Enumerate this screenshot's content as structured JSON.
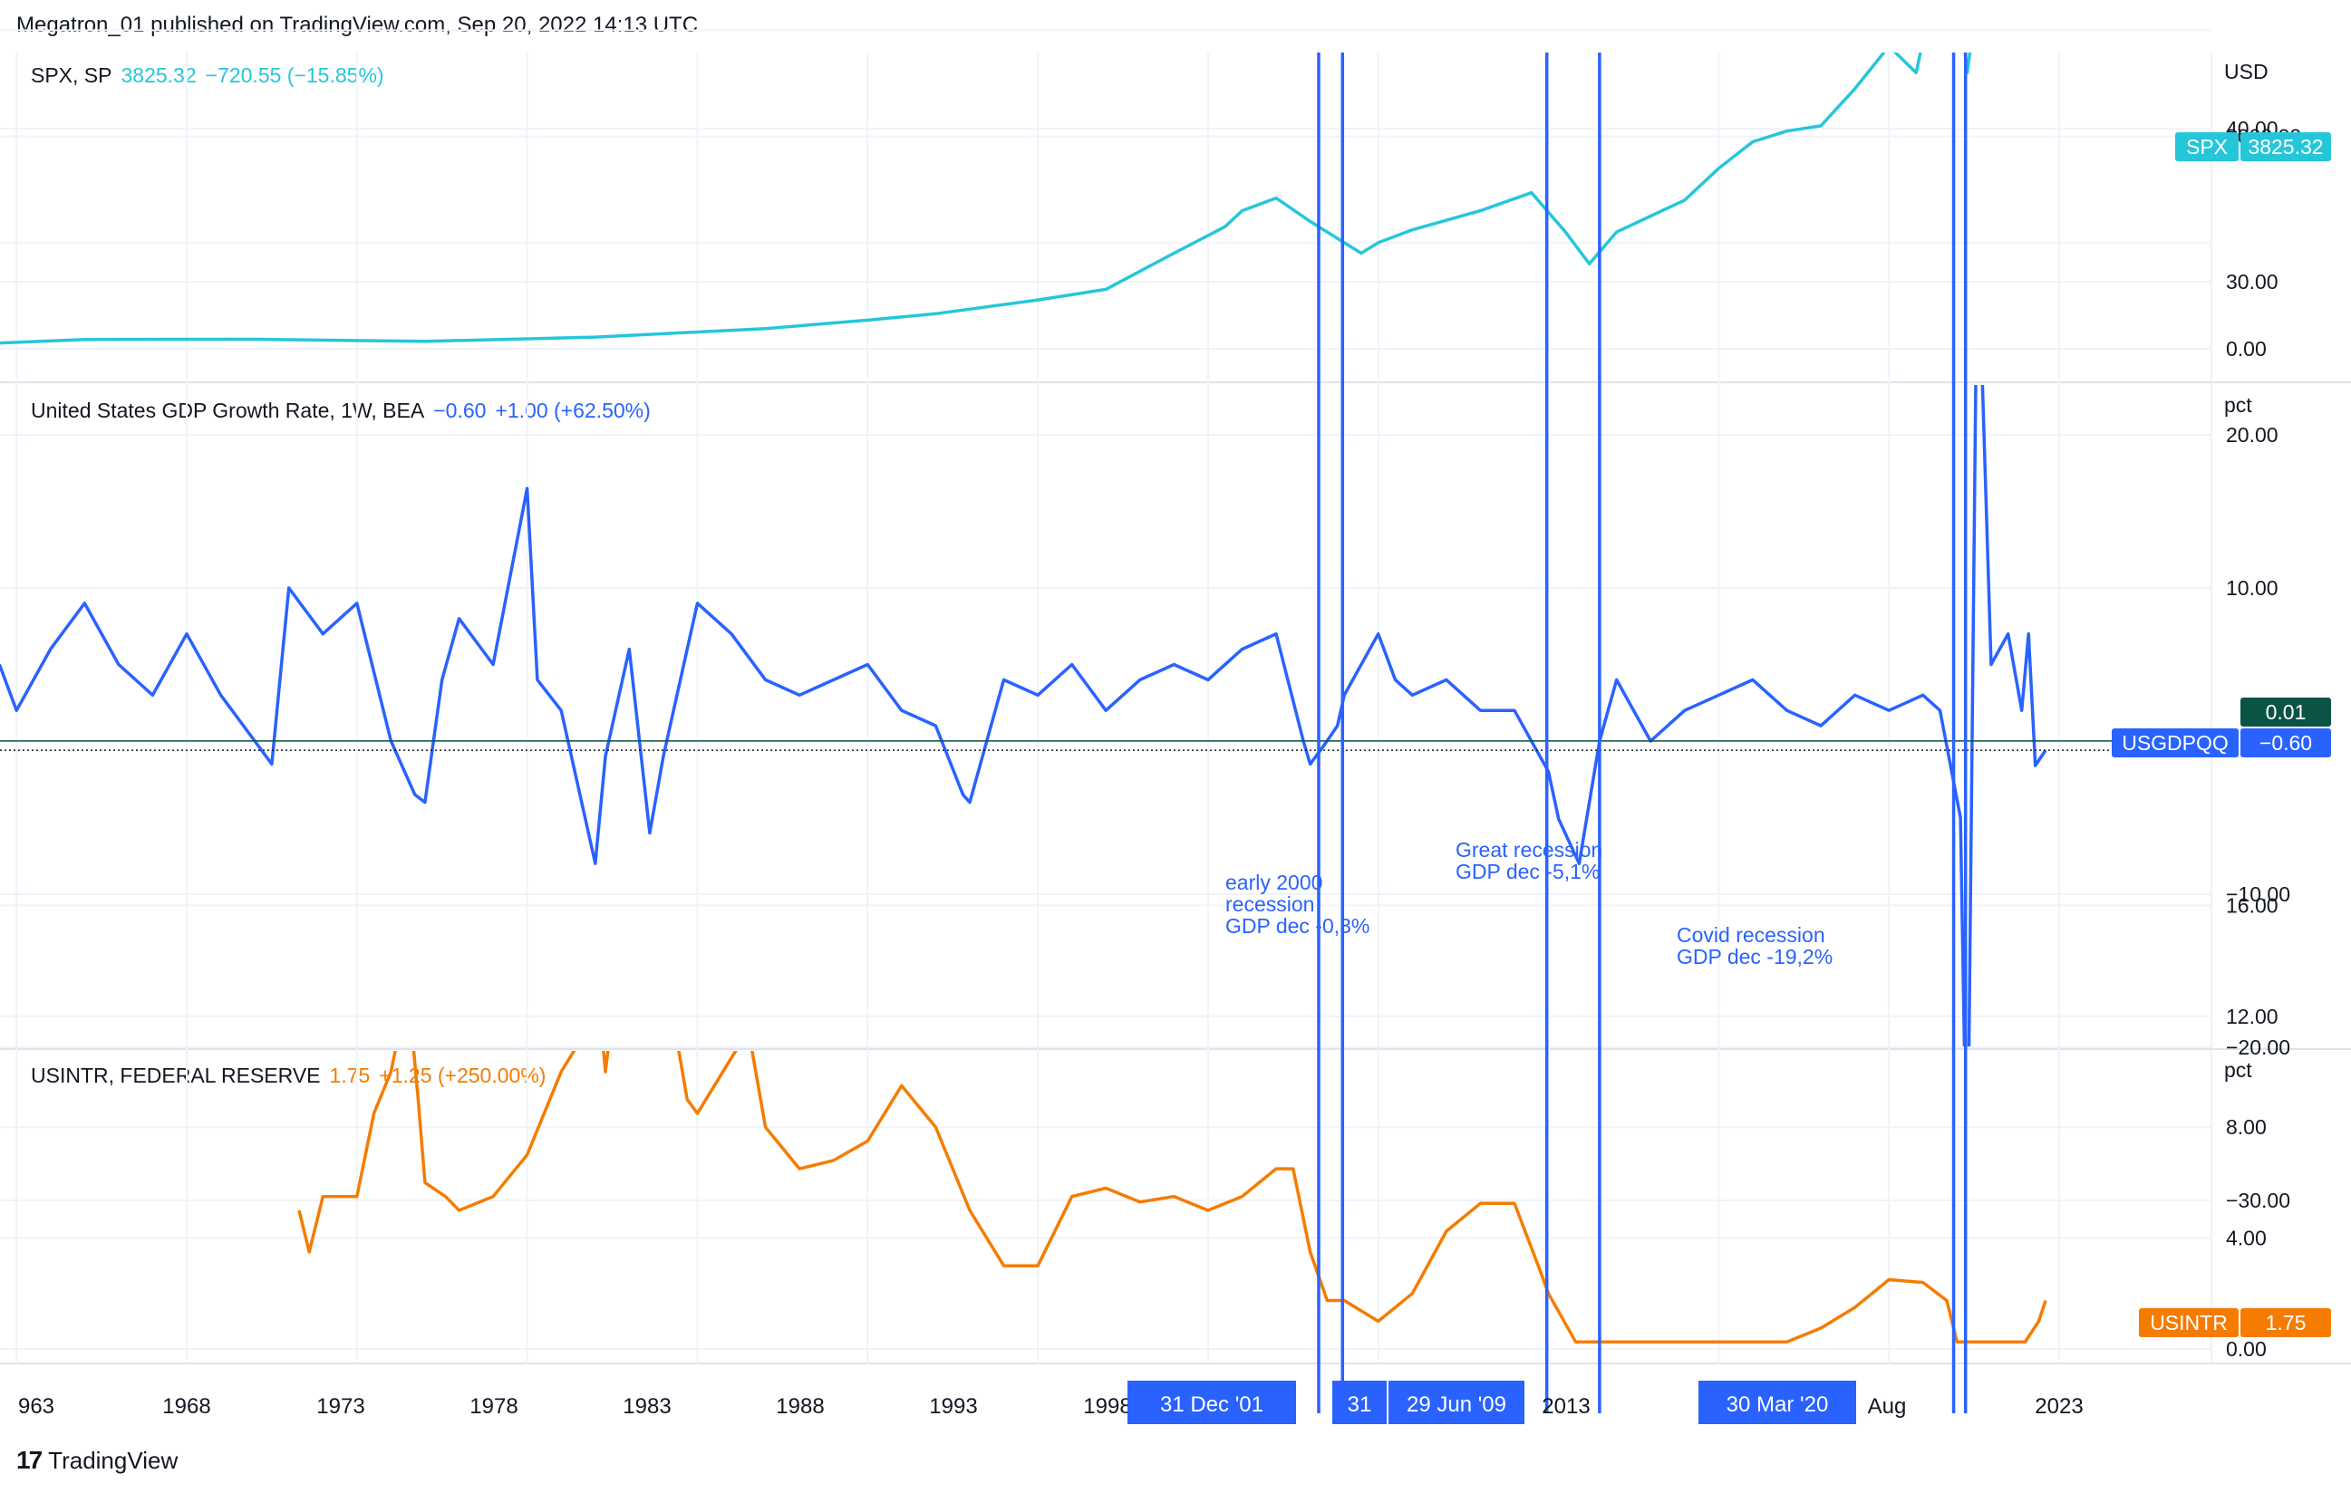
{
  "header": {
    "publish_line": "Megatron_01 published on TradingView.com, Sep 20, 2022 14:13 UTC"
  },
  "brand": {
    "name": "TradingView",
    "logo_text": "17"
  },
  "colors": {
    "spx": "#26c6da",
    "gdp": "#2962ff",
    "rate": "#f57c00",
    "marker": "#2962ff",
    "grid": "#f0f3fa",
    "pane_border": "#e0e3eb",
    "label_dark": "#0b5345"
  },
  "panes": {
    "spx": {
      "legend": {
        "name": "SPX, SP",
        "value": "3825.32",
        "change": "−720.55 (−15.85%)"
      },
      "unit": "USD",
      "ticks": [
        "2000.00",
        "0.00"
      ],
      "price_label": {
        "tag": "SPX",
        "value": "3825.32"
      }
    },
    "gdp": {
      "legend": {
        "name": "United States GDP Growth Rate, 1W, BEA",
        "value": "−0.60",
        "change": "+1.00 (+62.50%)"
      },
      "unit": "pct",
      "ticks": [
        "40.00",
        "30.00",
        "20.00",
        "10.00",
        "−10.00",
        "−20.00",
        "−30.00"
      ],
      "price_label": {
        "tag": "USGDPQQ",
        "value": "−0.60"
      },
      "extra_label": "0.01"
    },
    "rate": {
      "legend": {
        "name": "USINTR, FEDERAL RESERVE",
        "value": "1.75",
        "change": "+1.25 (+250.00%)"
      },
      "unit": "pct",
      "ticks": [
        "16.00",
        "12.00",
        "8.00",
        "4.00",
        "0.00"
      ],
      "price_label": {
        "tag": "USINTR",
        "value": "1.75"
      }
    }
  },
  "annotations": [
    {
      "lines": [
        "early 2000",
        "recession",
        "GDP dec -0,3%"
      ]
    },
    {
      "lines": [
        "Great recession",
        "GDP dec -5,1%"
      ]
    },
    {
      "lines": [
        "Covid recession",
        "GDP dec -19,2%"
      ]
    }
  ],
  "x_axis": {
    "labels": [
      "963",
      "1968",
      "1973",
      "1978",
      "1983",
      "1988",
      "1993",
      "1998",
      "2013",
      "Aug",
      "2023"
    ],
    "date_markers": [
      "31 Dec '01",
      "31",
      "29 Jun '09",
      "30 Mar '20"
    ]
  },
  "chart_data": [
    {
      "type": "line",
      "title": "SPX, SP",
      "ylabel": "USD",
      "ylim": [
        -100,
        5000
      ],
      "series": [
        {
          "name": "SPX",
          "x": [
            1962.5,
            1965,
            1970,
            1975,
            1980,
            1985,
            1988,
            1990,
            1993,
            1995,
            1997,
            1998.5,
            1999,
            2000,
            2001,
            2002.5,
            2003,
            2004,
            2006,
            2007.5,
            2008.5,
            2009.2,
            2010,
            2011,
            2012,
            2013,
            2014,
            2015,
            2016,
            2017,
            2018,
            2018.8,
            2019,
            2019.5,
            2020.1,
            2020.3,
            2020.5,
            2021,
            2021.5,
            2021.9,
            2022.2,
            2022.5,
            2022.7
          ],
          "values": [
            55,
            88,
            90,
            70,
            110,
            190,
            270,
            330,
            460,
            560,
            900,
            1150,
            1300,
            1420,
            1200,
            900,
            1000,
            1120,
            1300,
            1470,
            1100,
            800,
            1100,
            1250,
            1400,
            1700,
            1950,
            2050,
            2100,
            2450,
            2850,
            2600,
            2900,
            3000,
            3200,
            2600,
            3100,
            3750,
            4300,
            4700,
            4500,
            3900,
            3825.32
          ]
        }
      ],
      "last": 3825.32
    },
    {
      "type": "line",
      "title": "United States GDP Growth Rate, 1W, BEA",
      "ylabel": "pct",
      "ylim": [
        -40,
        40
      ],
      "series": [
        {
          "name": "USGDPQQ",
          "x": [
            1962.5,
            1963,
            1964,
            1965,
            1966,
            1967,
            1968,
            1969,
            1970,
            1970.5,
            1971,
            1972,
            1973,
            1974,
            1974.7,
            1975,
            1975.5,
            1976,
            1977,
            1978,
            1978.3,
            1979,
            1980,
            1980.3,
            1981,
            1981.6,
            1982,
            1983,
            1984,
            1985,
            1986,
            1987,
            1988,
            1989,
            1990,
            1990.8,
            1991,
            1992,
            1993,
            1994,
            1995,
            1996,
            1997,
            1998,
            1999,
            2000,
            2000.8,
            2001,
            2001.4,
            2001.8,
            2002,
            2003,
            2003.5,
            2004,
            2005,
            2006,
            2007,
            2008,
            2008.3,
            2008.9,
            2009.5,
            2010,
            2011,
            2012,
            2013,
            2014,
            2015,
            2016,
            2017,
            2018,
            2019,
            2019.5,
            2020.1,
            2020.3,
            2020.6,
            2021,
            2021.5,
            2021.9,
            2022.1,
            2022.3,
            2022.6
          ],
          "values": [
            5,
            2,
            6,
            9,
            5,
            3,
            7,
            3,
            0,
            -1.5,
            10,
            7,
            9,
            0,
            -3.5,
            -4,
            4,
            8,
            5,
            16.5,
            4,
            2,
            -8,
            -1,
            6,
            -6,
            -1,
            9,
            7,
            4,
            3,
            4,
            5,
            2,
            1,
            -3.5,
            -4,
            4,
            3,
            5,
            2,
            4,
            5,
            4,
            6,
            7,
            0,
            -1.5,
            -0.3,
            1,
            3,
            7,
            4,
            3,
            4,
            2,
            2,
            -2,
            -5.1,
            -8,
            0,
            4,
            0,
            2,
            3,
            4,
            2,
            1,
            3,
            2,
            3,
            2,
            -5,
            -31,
            34,
            5,
            7,
            2,
            7,
            -1.6,
            -0.6
          ]
        }
      ],
      "last": -0.6
    },
    {
      "type": "line",
      "title": "USINTR, FEDERAL RESERVE",
      "ylabel": "pct",
      "ylim": [
        -1,
        19
      ],
      "series": [
        {
          "name": "USINTR",
          "x": [
            1971.3,
            1971.6,
            1972,
            1973,
            1973.5,
            1974,
            1974.5,
            1974.8,
            1975,
            1975.6,
            1976,
            1977,
            1978,
            1979,
            1979.5,
            1980,
            1980.3,
            1980.6,
            1981,
            1981.5,
            1982,
            1982.7,
            1983,
            1984,
            1984.5,
            1985,
            1986,
            1987,
            1988,
            1989,
            1990,
            1991,
            1992,
            1993,
            1994,
            1995,
            1996,
            1997,
            1998,
            1999,
            2000,
            2000.5,
            2001,
            2001.5,
            2002,
            2003,
            2004,
            2005,
            2006,
            2007,
            2007.7,
            2008,
            2008.8,
            2009,
            2010,
            2015,
            2016,
            2017,
            2018,
            2019,
            2019.7,
            2020,
            2020.2,
            2021,
            2022,
            2022.4,
            2022.6
          ],
          "values": [
            5,
            3.5,
            5.5,
            5.5,
            8.5,
            10,
            13,
            9,
            6,
            5.5,
            5,
            5.5,
            7,
            10,
            11,
            14,
            10,
            13,
            18,
            15,
            14,
            9,
            8.5,
            10.5,
            11.5,
            8,
            6.5,
            6.8,
            7.5,
            9.5,
            8,
            5,
            3,
            3,
            5.5,
            5.8,
            5.3,
            5.5,
            5,
            5.5,
            6.5,
            6.5,
            3.5,
            1.75,
            1.75,
            1,
            2,
            4.25,
            5.25,
            5.25,
            3,
            2,
            0.25,
            0.25,
            0.25,
            0.25,
            0.75,
            1.5,
            2.5,
            2.4,
            1.75,
            0.25,
            0.25,
            0.25,
            0.25,
            1,
            1.75
          ]
        }
      ],
      "last": 1.75
    }
  ]
}
